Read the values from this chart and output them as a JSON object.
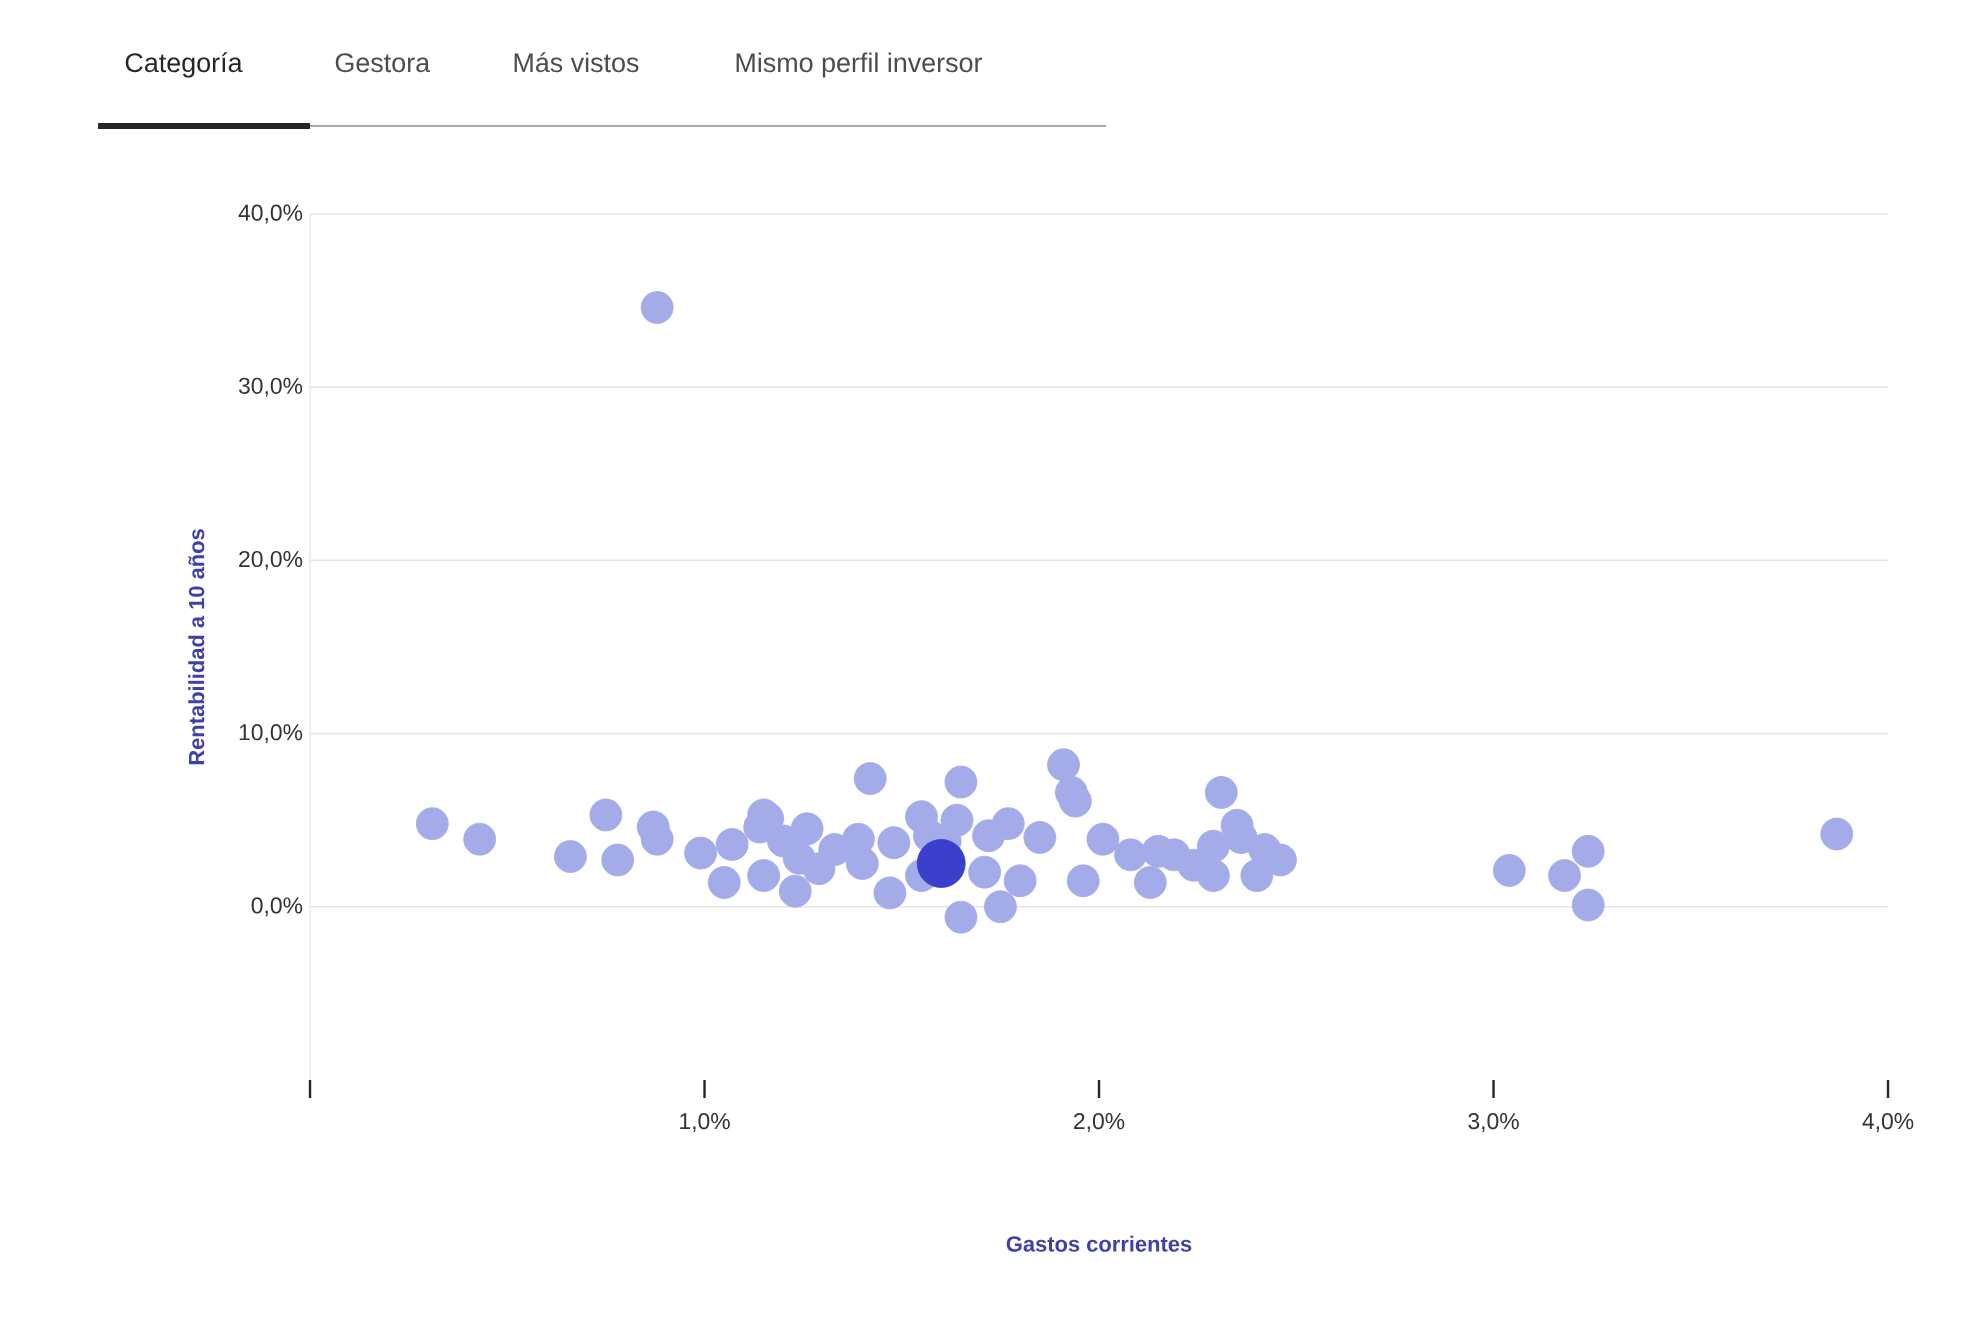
{
  "chart_data": {
    "type": "scatter",
    "xlabel": "Gastos corrientes",
    "ylabel": "Rentabilidad a 10 años",
    "annotations": [
      "Categoría",
      "Gestora",
      "Más vistos",
      "Mismo perfil inversor"
    ],
    "xlim": [
      0,
      4
    ],
    "ylim": [
      -10,
      40
    ],
    "xticks": [
      {
        "value": 0,
        "label": null
      },
      {
        "value": 1,
        "label": "1,0%"
      },
      {
        "value": 2,
        "label": "2,0%"
      },
      {
        "value": 3,
        "label": "3,0%"
      },
      {
        "value": 4,
        "label": "4,0%"
      }
    ],
    "yticks": [
      {
        "value": 0,
        "label": "0,0%"
      },
      {
        "value": 10,
        "label": "10,0%"
      },
      {
        "value": 20,
        "label": "20,0%"
      },
      {
        "value": 30,
        "label": "30,0%"
      },
      {
        "value": 40,
        "label": "40,0%"
      }
    ],
    "grid": "y",
    "marker": "circle",
    "series": [
      {
        "color": "#a3abe9",
        "x": [
          0.31,
          0.43,
          0.66,
          0.75,
          0.78,
          0.87,
          0.88,
          0.88,
          0.99,
          1.05,
          1.07,
          1.14,
          1.15,
          1.16,
          1.15,
          1.2,
          1.23,
          1.24,
          1.26,
          1.29,
          1.33,
          1.39,
          1.4,
          1.42,
          1.47,
          1.48,
          1.55,
          1.55,
          1.57,
          1.61,
          1.64,
          1.65,
          1.65,
          1.71,
          1.72,
          1.75,
          1.77,
          1.8,
          1.85,
          1.91,
          1.93,
          1.94,
          1.96,
          2.01,
          2.08,
          2.13,
          2.15,
          2.19,
          2.24,
          2.29,
          2.29,
          2.31,
          2.35,
          2.36,
          2.4,
          2.42,
          2.46,
          3.04,
          3.18,
          3.24,
          3.24,
          3.87
        ],
        "values": [
          4.8,
          3.9,
          2.9,
          5.3,
          2.7,
          4.6,
          3.9,
          34.6,
          3.1,
          1.4,
          3.6,
          4.6,
          5.3,
          5.1,
          1.8,
          3.8,
          0.9,
          2.8,
          4.5,
          2.2,
          3.3,
          3.9,
          2.5,
          7.4,
          0.8,
          3.7,
          5.2,
          1.8,
          4.1,
          3.8,
          5.0,
          7.2,
          -0.6,
          2.0,
          4.1,
          0.0,
          4.8,
          1.5,
          4.0,
          8.2,
          6.6,
          6.1,
          1.5,
          3.9,
          3.0,
          1.4,
          3.2,
          3.0,
          2.4,
          3.5,
          1.8,
          6.6,
          4.7,
          4.0,
          1.8,
          3.3,
          2.7,
          2.1,
          1.8,
          3.2,
          0.1,
          4.2
        ]
      },
      {
        "color": "#3b40cc",
        "x": [
          1.6
        ],
        "values": [
          2.5
        ]
      }
    ]
  }
}
